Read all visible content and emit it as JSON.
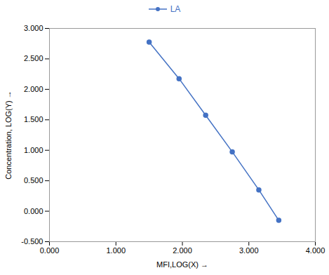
{
  "chart_data": {
    "type": "line",
    "x": [
      1.5,
      1.95,
      2.35,
      2.75,
      3.15,
      3.45
    ],
    "series": [
      {
        "name": "LA",
        "color": "#4472C4",
        "marker": "circle",
        "values": [
          2.775,
          2.175,
          1.575,
          0.975,
          0.35,
          -0.15
        ]
      }
    ],
    "xlabel": "MFI,LOG(X)",
    "ylabel": "Concentration, LOG(Y)",
    "xlim": [
      0.0,
      4.0
    ],
    "ylim": [
      -0.5,
      3.0
    ],
    "xticks": [
      {
        "value": 0,
        "label": "0.000"
      },
      {
        "value": 1,
        "label": "1.000"
      },
      {
        "value": 2,
        "label": "2.000"
      },
      {
        "value": 3,
        "label": "3.000"
      },
      {
        "value": 4,
        "label": "4.000"
      }
    ],
    "yticks": [
      {
        "value": -0.5,
        "label": "-0.500"
      },
      {
        "value": 0,
        "label": "0.000"
      },
      {
        "value": 0.5,
        "label": "0.500"
      },
      {
        "value": 1,
        "label": "1.000"
      },
      {
        "value": 1.5,
        "label": "1.500"
      },
      {
        "value": 2,
        "label": "2.000"
      },
      {
        "value": 2.5,
        "label": "2.500"
      },
      {
        "value": 3,
        "label": "3.000"
      }
    ],
    "legend": "upper center",
    "grid": false
  }
}
